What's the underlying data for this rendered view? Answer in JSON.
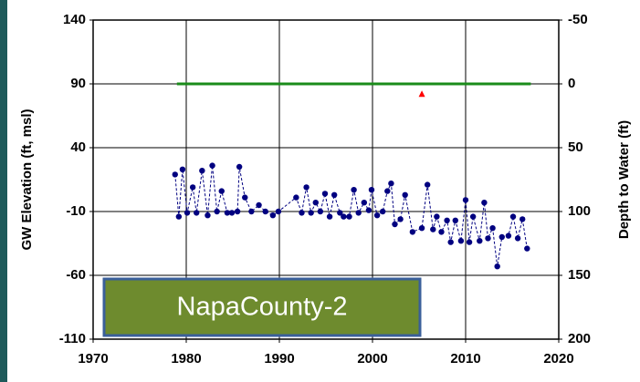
{
  "chart_data": {
    "type": "line",
    "ylabel": "GW Elevation (ft, msl)",
    "y2label": "Depth to Water (ft)",
    "annotation": "NapaCounty-2",
    "xlim": [
      1970,
      2020
    ],
    "xticks": [
      1970,
      1980,
      1990,
      2000,
      2010,
      2020
    ],
    "ylim": [
      -110,
      140
    ],
    "yticks": [
      -110,
      -60,
      -10,
      40,
      90,
      140
    ],
    "y2lim": [
      200,
      -50
    ],
    "y2ticks": [
      200,
      150,
      100,
      50,
      0,
      -50
    ],
    "grid": true,
    "series": [
      {
        "color": "#000080",
        "marker": "circle",
        "line": "dashed",
        "x": [
          1978.8,
          1979.2,
          1979.6,
          1980.1,
          1980.7,
          1981.1,
          1981.7,
          1982.3,
          1982.8,
          1983.3,
          1983.8,
          1984.4,
          1984.9,
          1985.5,
          1985.7,
          1986.3,
          1987.0,
          1987.8,
          1988.5,
          1989.3,
          1989.9,
          1991.8,
          1992.4,
          1992.9,
          1993.4,
          1993.9,
          1994.4,
          1994.9,
          1995.4,
          1995.9,
          1996.5,
          1996.9,
          1997.5,
          1998.0,
          1998.5,
          1999.1,
          1999.6,
          1999.9,
          2000.5,
          2001.1,
          2001.6,
          2002.0,
          2002.4,
          2003.0,
          2003.5,
          2004.3,
          2005.3,
          2005.9,
          2006.5,
          2006.9,
          2007.4,
          2008.0,
          2008.4,
          2008.9,
          2009.5,
          2010.0,
          2010.4,
          2010.8,
          2011.5,
          2012.0,
          2012.4,
          2012.9,
          2013.4,
          2013.9,
          2014.6,
          2015.1,
          2015.6,
          2016.1,
          2016.6
        ],
        "values": [
          19,
          -14,
          23,
          -11,
          9,
          -11,
          22,
          -13,
          26,
          -10,
          6,
          -11,
          -11,
          -10,
          25,
          1,
          -10,
          -5,
          -10,
          -13,
          -10,
          1,
          -11,
          9,
          -11,
          -3,
          -10,
          4,
          -14,
          3,
          -11,
          -14,
          -14,
          7,
          -11,
          -3,
          -9,
          7,
          -13,
          -10,
          6,
          12,
          -20,
          -16,
          3,
          -26,
          -23,
          11,
          -24,
          -14,
          -26,
          -17,
          -34,
          -17,
          -33,
          -1,
          -34,
          -14,
          -33,
          -3,
          -31,
          -23,
          -53,
          -30,
          -29,
          -14,
          -31,
          -16,
          -39
        ]
      },
      {
        "color": "#1a8c1a",
        "marker": "none",
        "line": "solid",
        "x": [
          1979,
          2017
        ],
        "values": [
          90,
          90
        ]
      },
      {
        "color": "#ff0000",
        "marker": "triangle",
        "line": "none",
        "x": [
          2005.3
        ],
        "values": [
          82
        ]
      }
    ]
  }
}
